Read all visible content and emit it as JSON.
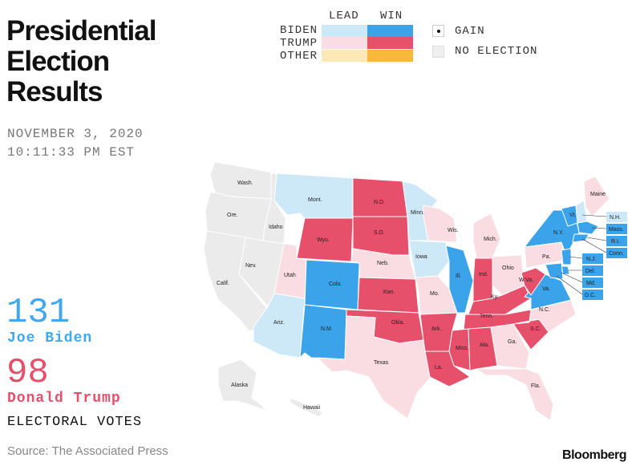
{
  "title": [
    "Presidential",
    "Election",
    "Results"
  ],
  "date": [
    "NOVEMBER 3, 2020",
    "10:11:33 PM EST"
  ],
  "legend": {
    "lead_label": "LEAD",
    "win_label": "WIN",
    "rows": [
      {
        "label": "BIDEN",
        "lead_color": "#cde9f8",
        "win_color": "#3aa3ea"
      },
      {
        "label": "TRUMP",
        "lead_color": "#f9dde2",
        "win_color": "#e6506a"
      },
      {
        "label": "OTHER",
        "lead_color": "#fde8b8",
        "win_color": "#f8b93a"
      }
    ],
    "gain_label": "GAIN",
    "no_election_label": "NO ELECTION",
    "no_election_color": "#ebebeb"
  },
  "biden": {
    "votes": "131",
    "name": "Joe Biden",
    "color": "#41a7ee"
  },
  "trump": {
    "votes": "98",
    "name": "Donald Trump",
    "color": "#e6506a"
  },
  "electoral_label": "ELECTORAL VOTES",
  "source": "Source: The Associated Press",
  "brand": "Bloomberg",
  "states": {
    "wa": "Wash.",
    "or": "Ore.",
    "ca": "Calif.",
    "id": "Idaho",
    "nv": "Nev.",
    "mt": "Mont.",
    "wy": "Wyo.",
    "ut": "Utah",
    "az": "Ariz.",
    "co": "Colo.",
    "nm": "N.M.",
    "nd": "N.D.",
    "sd": "S.D.",
    "ne": "Neb.",
    "ks": "Kan.",
    "ok": "Okla.",
    "tx": "Texas",
    "mn": "Minn.",
    "ia": "Iowa",
    "mo": "Mo.",
    "ar": "Ark.",
    "la": "La.",
    "wi": "Wis.",
    "il": "Ill.",
    "mi": "Mich.",
    "in": "Ind.",
    "oh": "Ohio",
    "ky": "Ky.",
    "tn": "Tenn.",
    "ms": "Miss.",
    "al": "Ala.",
    "ga": "Ga.",
    "fl": "Fla.",
    "sc": "S.C.",
    "nc": "N.C.",
    "va": "Va.",
    "wv": "W.Va.",
    "pa": "Pa.",
    "ny": "N.Y.",
    "vt": "Vt.",
    "me": "Maine",
    "ak": "Alaska",
    "hi": "Hawaii",
    "nh": "N.H.",
    "ma": "Mass.",
    "ri": "R.I.",
    "ct": "Conn.",
    "nj": "N.J.",
    "de": "Del.",
    "md": "Md.",
    "dc": "D.C."
  }
}
